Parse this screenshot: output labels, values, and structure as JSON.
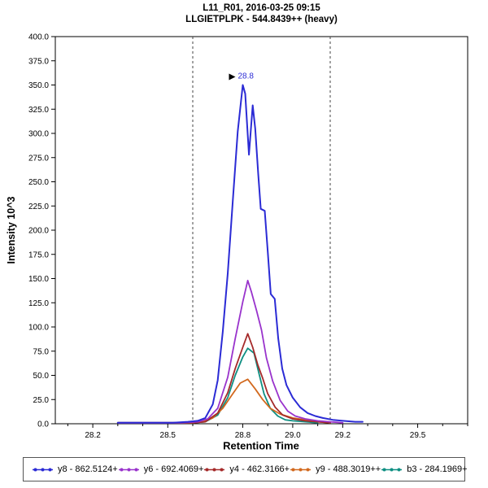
{
  "header": {
    "title": "L11_R01, 2016-03-25 09:15",
    "subtitle": "LLGIETPLPK - 544.8439++ (heavy)"
  },
  "chart_data": {
    "type": "line",
    "title": "L11_R01, 2016-03-25 09:15",
    "subtitle": "LLGIETPLPK - 544.8439++ (heavy)",
    "xlabel": "Retention Time",
    "ylabel": "Intensity 10^3",
    "xlim": [
      28.05,
      29.7
    ],
    "ylim": [
      0,
      400
    ],
    "grid": false,
    "legend_position": "bottom",
    "x_ticks": [
      {
        "value": 28.2,
        "label": "28.2"
      },
      {
        "value": 28.5,
        "label": "28.5"
      },
      {
        "value": 28.8,
        "label": "28.8"
      },
      {
        "value": 29.0,
        "label": "29.0"
      },
      {
        "value": 29.2,
        "label": "29.2"
      },
      {
        "value": 29.5,
        "label": "29.5"
      }
    ],
    "y_ticks": [
      {
        "value": 0,
        "label": "0.0"
      },
      {
        "value": 25,
        "label": "25.0"
      },
      {
        "value": 50,
        "label": "50.0"
      },
      {
        "value": 75,
        "label": "75.0"
      },
      {
        "value": 100,
        "label": "100.0"
      },
      {
        "value": 125,
        "label": "125.0"
      },
      {
        "value": 150,
        "label": "150.0"
      },
      {
        "value": 175,
        "label": "175.0"
      },
      {
        "value": 200,
        "label": "200.0"
      },
      {
        "value": 225,
        "label": "225.0"
      },
      {
        "value": 250,
        "label": "250.0"
      },
      {
        "value": 275,
        "label": "275.0"
      },
      {
        "value": 300,
        "label": "300.0"
      },
      {
        "value": 325,
        "label": "325.0"
      },
      {
        "value": 350,
        "label": "350.0"
      },
      {
        "value": 375,
        "label": "375.0"
      },
      {
        "value": 400,
        "label": "400.0"
      }
    ],
    "peak_boundaries": [
      28.6,
      29.15
    ],
    "peak_annotation": {
      "label": "28.8",
      "x": 28.8,
      "y": 350,
      "color": "#2b2bd5",
      "pointer_color": "#000000"
    },
    "series": [
      {
        "id": "y8",
        "name": "y8 - 862.5124+",
        "color": "#2b2bd5",
        "width": 2,
        "points": [
          [
            28.3,
            1
          ],
          [
            28.38,
            1
          ],
          [
            28.46,
            1
          ],
          [
            28.52,
            1
          ],
          [
            28.58,
            2
          ],
          [
            28.62,
            3
          ],
          [
            28.65,
            6
          ],
          [
            28.68,
            20
          ],
          [
            28.7,
            45
          ],
          [
            28.72,
            95
          ],
          [
            28.74,
            155
          ],
          [
            28.76,
            230
          ],
          [
            28.78,
            302
          ],
          [
            28.8,
            350
          ],
          [
            28.81,
            341
          ],
          [
            28.825,
            278
          ],
          [
            28.84,
            329
          ],
          [
            28.85,
            305
          ],
          [
            28.862,
            258
          ],
          [
            28.872,
            222
          ],
          [
            28.888,
            220
          ],
          [
            28.9,
            178
          ],
          [
            28.912,
            134
          ],
          [
            28.928,
            129
          ],
          [
            28.942,
            88
          ],
          [
            28.958,
            57
          ],
          [
            28.975,
            40
          ],
          [
            29.0,
            27
          ],
          [
            29.03,
            17
          ],
          [
            29.06,
            11
          ],
          [
            29.09,
            8
          ],
          [
            29.12,
            6
          ],
          [
            29.16,
            4
          ],
          [
            29.2,
            3
          ],
          [
            29.25,
            2
          ],
          [
            29.28,
            2
          ]
        ]
      },
      {
        "id": "y6",
        "name": "y6 - 692.4069+",
        "color": "#9933cc",
        "width": 1.8,
        "points": [
          [
            28.3,
            1
          ],
          [
            28.45,
            1
          ],
          [
            28.55,
            1
          ],
          [
            28.62,
            2
          ],
          [
            28.66,
            5
          ],
          [
            28.7,
            16
          ],
          [
            28.74,
            48
          ],
          [
            28.77,
            88
          ],
          [
            28.8,
            126
          ],
          [
            28.82,
            148
          ],
          [
            28.835,
            136
          ],
          [
            28.855,
            117
          ],
          [
            28.875,
            97
          ],
          [
            28.895,
            68
          ],
          [
            28.92,
            44
          ],
          [
            28.95,
            24
          ],
          [
            28.98,
            13
          ],
          [
            29.01,
            8
          ],
          [
            29.05,
            5
          ],
          [
            29.1,
            3
          ],
          [
            29.15,
            2
          ],
          [
            29.2,
            1
          ]
        ]
      },
      {
        "id": "y4",
        "name": "y4 - 462.3166+",
        "color": "#a52a2a",
        "width": 1.8,
        "points": [
          [
            28.3,
            1
          ],
          [
            28.5,
            1
          ],
          [
            28.6,
            1
          ],
          [
            28.65,
            2
          ],
          [
            28.7,
            11
          ],
          [
            28.74,
            32
          ],
          [
            28.77,
            57
          ],
          [
            28.8,
            79
          ],
          [
            28.82,
            93
          ],
          [
            28.84,
            79
          ],
          [
            28.86,
            61
          ],
          [
            28.88,
            47
          ],
          [
            28.9,
            31
          ],
          [
            28.93,
            17
          ],
          [
            28.96,
            9
          ],
          [
            29.0,
            5
          ],
          [
            29.05,
            3
          ],
          [
            29.1,
            2
          ],
          [
            29.15,
            1
          ]
        ]
      },
      {
        "id": "y9",
        "name": "y9 - 488.3019++",
        "color": "#d2691e",
        "width": 1.8,
        "points": [
          [
            28.3,
            1
          ],
          [
            28.5,
            1
          ],
          [
            28.6,
            1
          ],
          [
            28.64,
            2
          ],
          [
            28.68,
            6
          ],
          [
            28.72,
            16
          ],
          [
            28.76,
            31
          ],
          [
            28.79,
            42
          ],
          [
            28.82,
            46
          ],
          [
            28.85,
            36
          ],
          [
            28.88,
            25
          ],
          [
            28.91,
            16
          ],
          [
            28.95,
            10
          ],
          [
            29.0,
            6
          ],
          [
            29.05,
            4
          ],
          [
            29.1,
            2
          ],
          [
            29.15,
            1
          ]
        ]
      },
      {
        "id": "b3",
        "name": "b3 - 284.1969+",
        "color": "#0f8f82",
        "width": 1.8,
        "points": [
          [
            28.3,
            1
          ],
          [
            28.5,
            1
          ],
          [
            28.6,
            1
          ],
          [
            28.65,
            2
          ],
          [
            28.7,
            9
          ],
          [
            28.74,
            27
          ],
          [
            28.77,
            50
          ],
          [
            28.8,
            69
          ],
          [
            28.82,
            78
          ],
          [
            28.845,
            73
          ],
          [
            28.865,
            52
          ],
          [
            28.885,
            31
          ],
          [
            28.91,
            16
          ],
          [
            28.94,
            8
          ],
          [
            28.97,
            4
          ],
          [
            29.0,
            3
          ],
          [
            29.05,
            2
          ],
          [
            29.1,
            1
          ]
        ]
      }
    ]
  }
}
